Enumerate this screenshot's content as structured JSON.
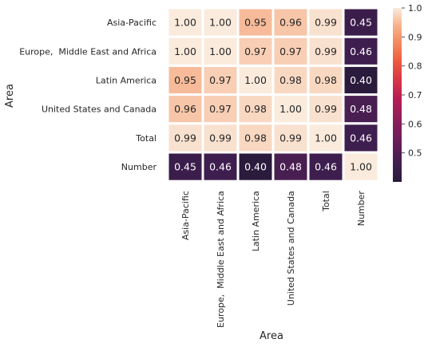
{
  "chart_data": {
    "type": "heatmap",
    "title": "",
    "xlabel": "Area",
    "ylabel": "Area",
    "x_categories": [
      "Asia-Pacific",
      "Europe,  Middle East and Africa",
      "Latin America",
      "United States and Canada",
      "Total",
      "Number"
    ],
    "y_categories": [
      "Asia-Pacific",
      "Europe,  Middle East and Africa",
      "Latin America",
      "United States and Canada",
      "Total",
      "Number"
    ],
    "values": [
      [
        1.0,
        1.0,
        0.95,
        0.96,
        0.99,
        0.45
      ],
      [
        1.0,
        1.0,
        0.97,
        0.97,
        0.99,
        0.46
      ],
      [
        0.95,
        0.97,
        1.0,
        0.98,
        0.98,
        0.4
      ],
      [
        0.96,
        0.97,
        0.98,
        1.0,
        0.99,
        0.48
      ],
      [
        0.99,
        0.99,
        0.98,
        0.99,
        1.0,
        0.46
      ],
      [
        0.45,
        0.46,
        0.4,
        0.48,
        0.46,
        1.0
      ]
    ],
    "value_format": "0.00",
    "colormap": "rocket",
    "colorbar": {
      "range": [
        0.4,
        1.0
      ],
      "ticks": [
        0.5,
        0.6,
        0.7,
        0.8,
        0.9,
        1.0
      ],
      "tick_labels": [
        "0.5",
        "0.6",
        "0.7",
        "0.8",
        "0.9",
        "1.0"
      ]
    },
    "cell_separator_color": "#ffffff",
    "grid": false
  }
}
